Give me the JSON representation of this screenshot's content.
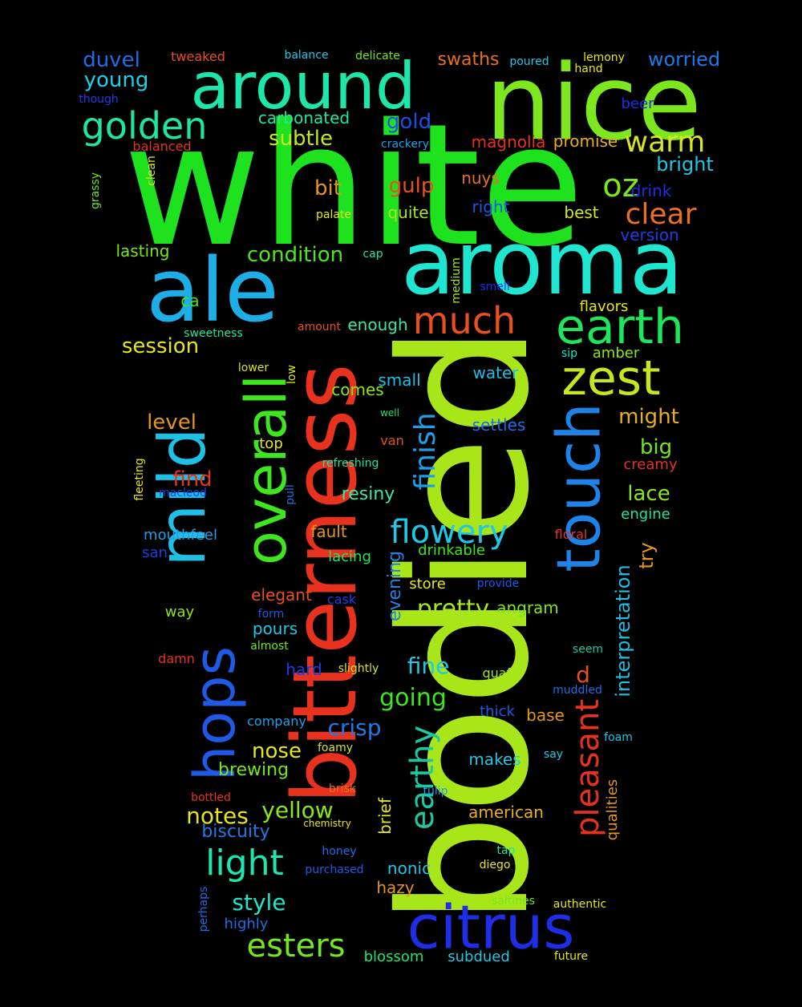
{
  "words": [
    {
      "text": "white",
      "color": "#1ee21e"
    },
    {
      "text": "bodied",
      "color": "#a8e61a"
    },
    {
      "text": "bitterness",
      "color": "#e8321e"
    },
    {
      "text": "nice",
      "color": "#7ce61e"
    },
    {
      "text": "aroma",
      "color": "#1ee6d0"
    },
    {
      "text": "ale",
      "color": "#1eaee6"
    },
    {
      "text": "around",
      "color": "#1ee6aa"
    },
    {
      "text": "mild",
      "color": "#1ec0e6"
    },
    {
      "text": "hops",
      "color": "#1e5ae6"
    },
    {
      "text": "overall",
      "color": "#3ee61e"
    },
    {
      "text": "touch",
      "color": "#1e82e6"
    },
    {
      "text": "citrus",
      "color": "#1e2ee6"
    },
    {
      "text": "earth",
      "color": "#1ee65a"
    },
    {
      "text": "zest",
      "color": "#c8e61e"
    },
    {
      "text": "much",
      "color": "#e8501e"
    },
    {
      "text": "golden",
      "color": "#1ee6a0"
    },
    {
      "text": "oz",
      "color": "#7ce61e"
    },
    {
      "text": "warm",
      "color": "#d6e61e"
    },
    {
      "text": "clear",
      "color": "#e8701e"
    },
    {
      "text": "flowery",
      "color": "#1ec8e6"
    },
    {
      "text": "finish",
      "color": "#1e9ee6"
    },
    {
      "text": "earthy",
      "color": "#1ec8a0"
    },
    {
      "text": "light",
      "color": "#1ee6b0"
    },
    {
      "text": "esters",
      "color": "#74e61e"
    },
    {
      "text": "pleasant",
      "color": "#e8321e"
    },
    {
      "text": "interpretation",
      "color": "#1ebee6"
    },
    {
      "text": "yellow",
      "color": "#8ce61e"
    },
    {
      "text": "pretty",
      "color": "#a8e61e"
    },
    {
      "text": "going",
      "color": "#3ee61e"
    },
    {
      "text": "fine",
      "color": "#1ec8e6"
    },
    {
      "text": "crisp",
      "color": "#1e7ae6"
    },
    {
      "text": "nose",
      "color": "#e6e61e"
    },
    {
      "text": "notes",
      "color": "#e6e61e"
    },
    {
      "text": "style",
      "color": "#1ee6c8"
    },
    {
      "text": "duvel",
      "color": "#1e6ee6"
    },
    {
      "text": "young",
      "color": "#1ed0e6"
    },
    {
      "text": "gold",
      "color": "#1e4ee6"
    },
    {
      "text": "subtle",
      "color": "#c8e61e"
    },
    {
      "text": "bit",
      "color": "#e6961e"
    },
    {
      "text": "gulp",
      "color": "#e8501e"
    },
    {
      "text": "condition",
      "color": "#4ee61e"
    },
    {
      "text": "session",
      "color": "#e6e61e"
    },
    {
      "text": "level",
      "color": "#e6961e"
    },
    {
      "text": "find",
      "color": "#e8321e"
    },
    {
      "text": "might",
      "color": "#e6b01e"
    },
    {
      "text": "big",
      "color": "#74e61e"
    },
    {
      "text": "lace",
      "color": "#8ce61e"
    },
    {
      "text": "bright",
      "color": "#1ec8e6"
    },
    {
      "text": "worried",
      "color": "#1e7ae6"
    },
    {
      "text": "swaths",
      "color": "#e8701e"
    },
    {
      "text": "magnolia",
      "color": "#e8321e"
    },
    {
      "text": "promise",
      "color": "#e6b01e"
    },
    {
      "text": "resiny",
      "color": "#3ee6a0"
    },
    {
      "text": "small",
      "color": "#1ec0e6"
    },
    {
      "text": "biscuity",
      "color": "#1e7ae6"
    },
    {
      "text": "evening",
      "color": "#1e82e6"
    },
    {
      "text": "brewing",
      "color": "#74e61e"
    },
    {
      "text": "american",
      "color": "#e6b01e"
    },
    {
      "text": "carbonated",
      "color": "#1ee6aa"
    },
    {
      "text": "lasting",
      "color": "#74e61e"
    },
    {
      "text": "quite",
      "color": "#a8e61e"
    },
    {
      "text": "right",
      "color": "#1e5ae6"
    },
    {
      "text": "best",
      "color": "#d6e61e"
    },
    {
      "text": "drink",
      "color": "#1e2ee6"
    },
    {
      "text": "version",
      "color": "#1e3ee6"
    },
    {
      "text": "beer",
      "color": "#1e2ee6"
    },
    {
      "text": "nuys",
      "color": "#e8701e"
    },
    {
      "text": "enough",
      "color": "#3ee6a0"
    },
    {
      "text": "comes",
      "color": "#8ce61e"
    },
    {
      "text": "water",
      "color": "#1ebee6"
    },
    {
      "text": "settles",
      "color": "#1e6ee6"
    },
    {
      "text": "amber",
      "color": "#8ce61e"
    },
    {
      "text": "flavors",
      "color": "#e6e61e"
    },
    {
      "text": "creamy",
      "color": "#e8321e"
    },
    {
      "text": "engine",
      "color": "#1ee6a0"
    },
    {
      "text": "try",
      "color": "#e6961e"
    },
    {
      "text": "elegant",
      "color": "#e8501e"
    },
    {
      "text": "pours",
      "color": "#1ec8e6"
    },
    {
      "text": "drinkable",
      "color": "#3ee61e"
    },
    {
      "text": "store",
      "color": "#e6e61e"
    },
    {
      "text": "angram",
      "color": "#7ce61e"
    },
    {
      "text": "hard",
      "color": "#1e3ee6"
    },
    {
      "text": "fault",
      "color": "#e6961e"
    },
    {
      "text": "lacing",
      "color": "#1ee65a"
    },
    {
      "text": "mouthfeel",
      "color": "#1ea0e6"
    },
    {
      "text": "san",
      "color": "#1e3ee6"
    },
    {
      "text": "hazy",
      "color": "#e6961e"
    },
    {
      "text": "nonic",
      "color": "#1ec8e6"
    },
    {
      "text": "brief",
      "color": "#e6e61e"
    },
    {
      "text": "makes",
      "color": "#1ec8e6"
    },
    {
      "text": "d",
      "color": "#e8501e"
    },
    {
      "text": "base",
      "color": "#e6961e"
    },
    {
      "text": "thick",
      "color": "#1e5ae6"
    },
    {
      "text": "subdued",
      "color": "#1ec8e6"
    },
    {
      "text": "blossom",
      "color": "#1ee66e"
    },
    {
      "text": "highly",
      "color": "#1e6ee6"
    },
    {
      "text": "company",
      "color": "#1ea0e6"
    },
    {
      "text": "qualities",
      "color": "#e6961e"
    },
    {
      "text": "tweaked",
      "color": "#e8501e"
    },
    {
      "text": "balance",
      "color": "#1ec8e6"
    },
    {
      "text": "delicate",
      "color": "#74e61e"
    },
    {
      "text": "poured",
      "color": "#1ec8e6"
    },
    {
      "text": "lemony",
      "color": "#e6e61e"
    },
    {
      "text": "hand",
      "color": "#e6e61e"
    },
    {
      "text": "though",
      "color": "#1e3ee6"
    },
    {
      "text": "balanced",
      "color": "#e8321e"
    },
    {
      "text": "crackery",
      "color": "#1ea0e6"
    },
    {
      "text": "clean",
      "color": "#e6e61e"
    },
    {
      "text": "grassy",
      "color": "#74e61e"
    },
    {
      "text": "palate",
      "color": "#e6e61e"
    },
    {
      "text": "cap",
      "color": "#1ee6a0"
    },
    {
      "text": "medium",
      "color": "#a8e61e"
    },
    {
      "text": "smell",
      "color": "#1e2ee6"
    },
    {
      "text": "ca",
      "color": "#3ee61e"
    },
    {
      "text": "amount",
      "color": "#e8501e"
    },
    {
      "text": "sweetness",
      "color": "#1ee6a0"
    },
    {
      "text": "sip",
      "color": "#1ee6c8"
    },
    {
      "text": "lower",
      "color": "#d6e61e"
    },
    {
      "text": "low",
      "color": "#e6e61e"
    },
    {
      "text": "well",
      "color": "#1ee66e"
    },
    {
      "text": "top",
      "color": "#e6e61e"
    },
    {
      "text": "van",
      "color": "#e8501e"
    },
    {
      "text": "refreshing",
      "color": "#1ee6a0"
    },
    {
      "text": "fleeting",
      "color": "#e6e61e"
    },
    {
      "text": "macleod",
      "color": "#1e3ee6"
    },
    {
      "text": "pull",
      "color": "#1e6ee6"
    },
    {
      "text": "floral",
      "color": "#e8321e"
    },
    {
      "text": "provide",
      "color": "#1e5ae6"
    },
    {
      "text": "cask",
      "color": "#1e3ee6"
    },
    {
      "text": "way",
      "color": "#8ce61e"
    },
    {
      "text": "form",
      "color": "#1e5ae6"
    },
    {
      "text": "almost",
      "color": "#74e61e"
    },
    {
      "text": "seem",
      "color": "#1ec8a0"
    },
    {
      "text": "damn",
      "color": "#e8321e"
    },
    {
      "text": "slightly",
      "color": "#d6e61e"
    },
    {
      "text": "quaff",
      "color": "#a8e61e"
    },
    {
      "text": "muddled",
      "color": "#1e6ee6"
    },
    {
      "text": "foam",
      "color": "#1ec8e6"
    },
    {
      "text": "foamy",
      "color": "#d6e61e"
    },
    {
      "text": "say",
      "color": "#1ec8e6"
    },
    {
      "text": "brisk",
      "color": "#e8701e"
    },
    {
      "text": "tulip",
      "color": "#1ea0e6"
    },
    {
      "text": "bottled",
      "color": "#e8321e"
    },
    {
      "text": "chemistry",
      "color": "#e6e61e"
    },
    {
      "text": "honey",
      "color": "#1e6ee6"
    },
    {
      "text": "tap",
      "color": "#1ee6a0"
    },
    {
      "text": "diego",
      "color": "#e6e61e"
    },
    {
      "text": "purchased",
      "color": "#1e5ae6"
    },
    {
      "text": "perhaps",
      "color": "#1e6ee6"
    },
    {
      "text": "saltines",
      "color": "#74e61e"
    },
    {
      "text": "authentic",
      "color": "#e6e61e"
    },
    {
      "text": "future",
      "color": "#e6e61e"
    }
  ]
}
